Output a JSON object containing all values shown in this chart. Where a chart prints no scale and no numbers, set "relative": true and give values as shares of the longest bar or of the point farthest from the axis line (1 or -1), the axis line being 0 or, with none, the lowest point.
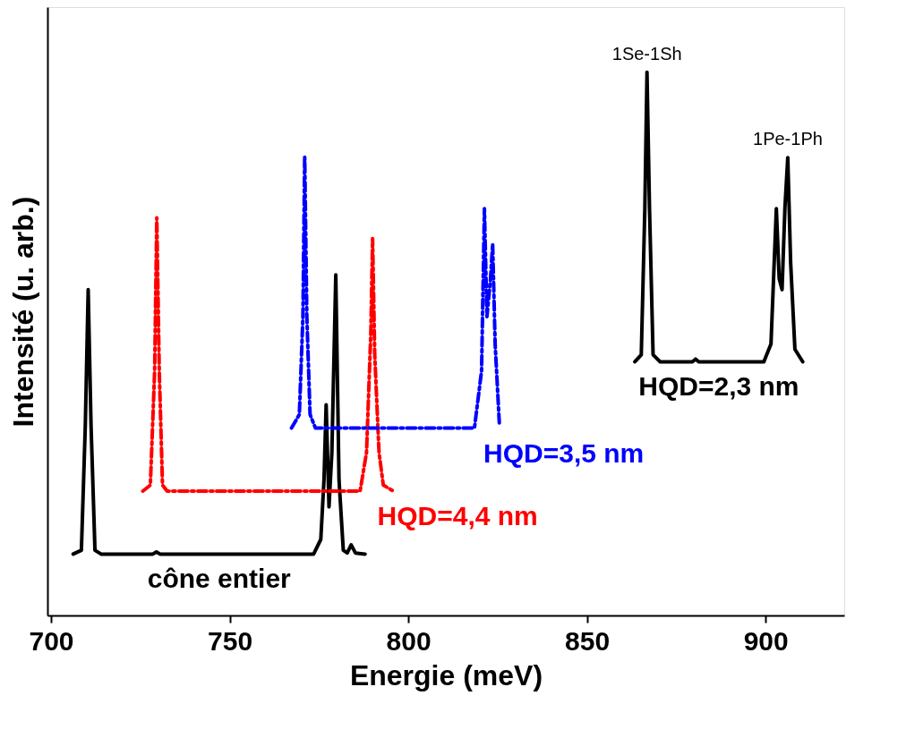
{
  "chart_data": {
    "type": "line",
    "xlabel": "Energie (meV)",
    "ylabel": "Intensité (u. arb.)",
    "relative": true,
    "xlim": [
      699,
      922
    ],
    "xticks": [
      700,
      750,
      800,
      850,
      900
    ],
    "series": [
      {
        "name": "cône entier",
        "color": "#000000",
        "line_style": "solid",
        "x": [
          706.2,
          708.5,
          709.6,
          710.4,
          711.2,
          712.3,
          714,
          728.5,
          729.5,
          730.5,
          773.5,
          775.5,
          776.4,
          777,
          777.8,
          778.6,
          779.7,
          780.6,
          781.8,
          782.9,
          784,
          785.2,
          787.9
        ],
        "values": [
          0.113,
          0.12,
          0.35,
          0.6,
          0.35,
          0.12,
          0.113,
          0.113,
          0.117,
          0.113,
          0.113,
          0.14,
          0.25,
          0.388,
          0.2,
          0.3,
          0.627,
          0.25,
          0.12,
          0.115,
          0.13,
          0.115,
          0.113
        ]
      },
      {
        "name": "HQD=4,4 nm",
        "color": "#ff0000",
        "line_style": "dashed",
        "x": [
          725.7,
          727.8,
          729.0,
          729.6,
          730.3,
          731.2,
          732.5,
          786.5,
          788.3,
          789.5,
          790.0,
          790.6,
          791.8,
          793,
          795.8
        ],
        "values": [
          0.229,
          0.24,
          0.45,
          0.732,
          0.45,
          0.24,
          0.229,
          0.229,
          0.3,
          0.52,
          0.694,
          0.48,
          0.3,
          0.24,
          0.229
        ]
      },
      {
        "name": "HQD=3,5 nm",
        "color": "#0000ff",
        "line_style": "dashed",
        "x": [
          767.3,
          769.5,
          770.5,
          771.0,
          771.6,
          772.5,
          774,
          818.5,
          820.5,
          821.3,
          822,
          823,
          823.6,
          824.3,
          825.5
        ],
        "values": [
          0.345,
          0.37,
          0.55,
          0.846,
          0.55,
          0.37,
          0.345,
          0.345,
          0.45,
          0.749,
          0.55,
          0.62,
          0.684,
          0.5,
          0.35
        ]
      },
      {
        "name": "HQD=2,3 nm",
        "color": "#000000",
        "line_style": "solid",
        "x": [
          863.4,
          865.2,
          866.2,
          866.8,
          867.5,
          868.5,
          870.5,
          879.5,
          880.4,
          881.3,
          899.5,
          901.5,
          902.4,
          903.0,
          903.8,
          904.6,
          905.4,
          906.2,
          907.0,
          908.2,
          910.4
        ],
        "values": [
          0.467,
          0.48,
          0.75,
          1.0,
          0.75,
          0.48,
          0.467,
          0.467,
          0.472,
          0.467,
          0.467,
          0.5,
          0.65,
          0.749,
          0.62,
          0.6,
          0.75,
          0.843,
          0.65,
          0.49,
          0.467
        ]
      }
    ],
    "annotations": [
      {
        "text": "1Se-1Sh",
        "x": 866.8,
        "y": 1.0
      },
      {
        "text": "1Pe-1Ph",
        "x": 906.2,
        "y": 0.843
      }
    ]
  }
}
